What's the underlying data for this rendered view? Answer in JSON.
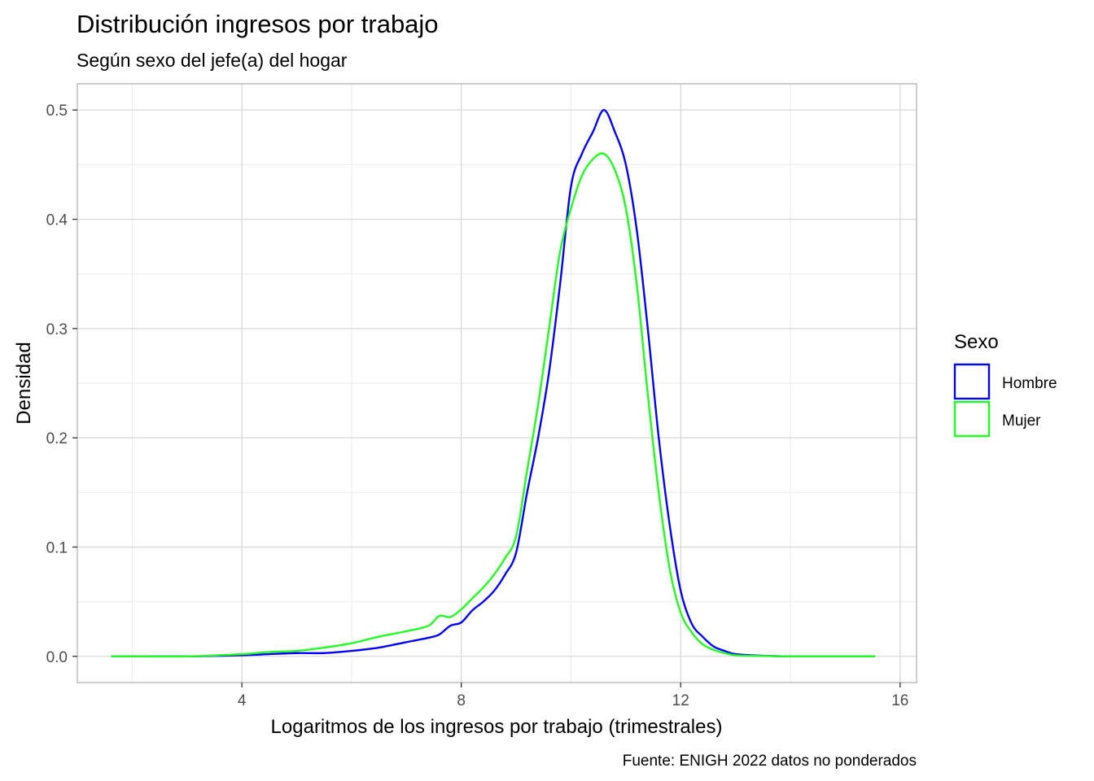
{
  "chart_data": {
    "type": "line",
    "title": "Distribución ingresos por trabajo",
    "subtitle": "Según sexo del jefe(a) del hogar",
    "xlabel": "Logaritmos de los ingresos por trabajo (trimestrales)",
    "ylabel": "Densidad",
    "caption": "Fuente: ENIGH 2022 datos no ponderados",
    "xlim": [
      1.0,
      16.3
    ],
    "ylim": [
      -0.024,
      0.524
    ],
    "x_ticks": [
      4,
      8,
      12,
      16
    ],
    "x_tick_labels": [
      "4",
      "8",
      "12",
      "16"
    ],
    "y_ticks": [
      0.0,
      0.1,
      0.2,
      0.3,
      0.4,
      0.5
    ],
    "y_tick_labels": [
      "0.0",
      "0.1",
      "0.2",
      "0.3",
      "0.4",
      "0.5"
    ],
    "grid": true,
    "legend": {
      "title": "Sexo",
      "position": "right"
    },
    "series": [
      {
        "name": "Hombre",
        "color": "#0000ff",
        "x": [
          1.62,
          2.0,
          3.0,
          4.0,
          4.5,
          5.0,
          5.5,
          6.0,
          6.5,
          7.0,
          7.4,
          7.6,
          7.8,
          8.0,
          8.2,
          8.4,
          8.6,
          8.8,
          9.0,
          9.2,
          9.4,
          9.6,
          9.8,
          10.0,
          10.2,
          10.4,
          10.6,
          10.8,
          11.0,
          11.2,
          11.4,
          11.6,
          11.8,
          12.0,
          12.2,
          12.4,
          12.6,
          12.8,
          13.0,
          13.5,
          14.0,
          15.0,
          15.55
        ],
        "y": [
          0.0,
          0.0,
          0.0,
          0.001,
          0.002,
          0.003,
          0.003,
          0.005,
          0.008,
          0.013,
          0.017,
          0.02,
          0.028,
          0.031,
          0.042,
          0.05,
          0.06,
          0.075,
          0.095,
          0.15,
          0.2,
          0.26,
          0.34,
          0.43,
          0.46,
          0.48,
          0.5,
          0.48,
          0.45,
          0.39,
          0.3,
          0.2,
          0.12,
          0.06,
          0.03,
          0.018,
          0.009,
          0.005,
          0.002,
          0.0005,
          0.0,
          0.0,
          0.0
        ]
      },
      {
        "name": "Mujer",
        "color": "#20ff20",
        "x": [
          1.62,
          2.0,
          3.0,
          4.0,
          4.5,
          5.0,
          5.5,
          6.0,
          6.5,
          7.0,
          7.4,
          7.6,
          7.8,
          8.0,
          8.2,
          8.4,
          8.6,
          8.8,
          9.0,
          9.2,
          9.4,
          9.6,
          9.8,
          10.0,
          10.2,
          10.4,
          10.6,
          10.8,
          11.0,
          11.2,
          11.4,
          11.6,
          11.8,
          12.0,
          12.2,
          12.4,
          12.6,
          12.8,
          13.0,
          13.5,
          14.0,
          15.0,
          15.55
        ],
        "y": [
          0.0,
          0.0,
          0.0,
          0.002,
          0.004,
          0.005,
          0.008,
          0.012,
          0.018,
          0.023,
          0.028,
          0.037,
          0.036,
          0.043,
          0.053,
          0.063,
          0.075,
          0.09,
          0.11,
          0.17,
          0.23,
          0.3,
          0.37,
          0.41,
          0.44,
          0.455,
          0.46,
          0.445,
          0.41,
          0.34,
          0.24,
          0.15,
          0.08,
          0.04,
          0.022,
          0.011,
          0.006,
          0.003,
          0.001,
          0.0003,
          0.0,
          0.0,
          0.0
        ]
      }
    ]
  }
}
